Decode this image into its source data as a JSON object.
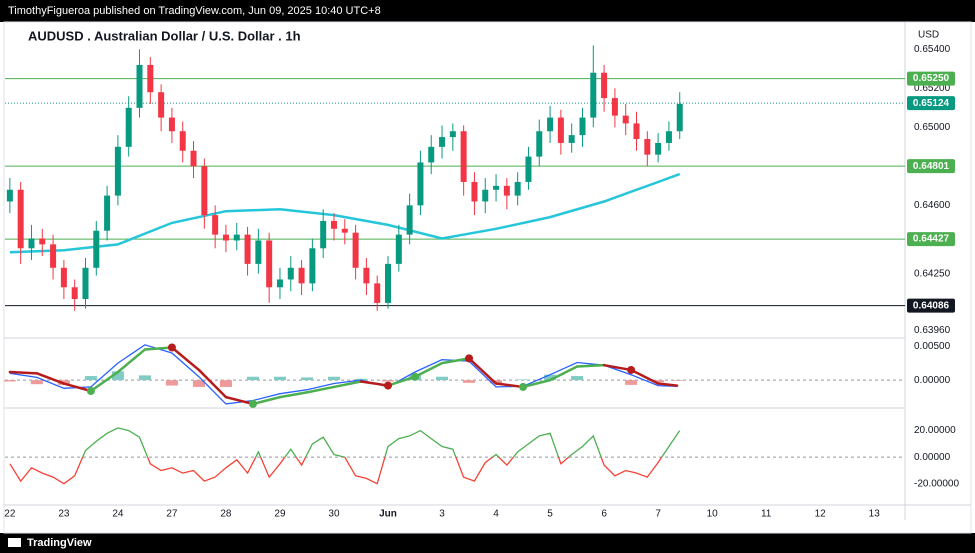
{
  "header": {
    "publisher": "TimothyFigueroa published on TradingView.com, Jun 09, 2025 10:40 UTC+8",
    "brand": "TradingView"
  },
  "chart_data": [
    {
      "type": "candlestick",
      "title": "AUDUSD . Australian Dollar / U.S. Dollar . 1h",
      "currency": "USD",
      "up_color": "#089981",
      "down_color": "#f23645",
      "xlim": [
        -0.09,
        16.57
      ],
      "xticks": [
        {
          "value": 0,
          "label": "22"
        },
        {
          "value": 1,
          "label": "23"
        },
        {
          "value": 2,
          "label": "24"
        },
        {
          "value": 3,
          "label": "27"
        },
        {
          "value": 4,
          "label": "28"
        },
        {
          "value": 5,
          "label": "29"
        },
        {
          "value": 6,
          "label": "30"
        },
        {
          "value": 7,
          "label": "Jun"
        },
        {
          "value": 8,
          "label": "3"
        },
        {
          "value": 9,
          "label": "4"
        },
        {
          "value": 10,
          "label": "5"
        },
        {
          "value": 11,
          "label": "6"
        },
        {
          "value": 12,
          "label": "7"
        },
        {
          "value": 13,
          "label": "10"
        },
        {
          "value": 14,
          "label": "11"
        },
        {
          "value": 15,
          "label": "12"
        },
        {
          "value": 16,
          "label": "13"
        }
      ],
      "ylim": [
        0.6392,
        0.6554
      ],
      "yticks": [
        {
          "value": 0.654,
          "label": "0.65400"
        },
        {
          "value": 0.652,
          "label": "0.65200"
        },
        {
          "value": 0.65,
          "label": "0.65000"
        },
        {
          "value": 0.646,
          "label": "0.64600"
        },
        {
          "value": 0.6425,
          "label": "0.64250"
        },
        {
          "value": 0.6396,
          "label": "0.63960"
        }
      ],
      "levels": [
        {
          "value": 0.6525,
          "label": "0.65250",
          "color": "#4caf50",
          "style": "solid"
        },
        {
          "value": 0.65124,
          "label": "0.65124",
          "color": "#089981",
          "style": "dotted"
        },
        {
          "value": 0.64801,
          "label": "0.64801",
          "color": "#4caf50",
          "style": "solid"
        },
        {
          "value": 0.64427,
          "label": "0.64427",
          "color": "#4caf50",
          "style": "solid"
        },
        {
          "value": 0.64086,
          "label": "0.64086",
          "color": "#131722",
          "style": "solid"
        }
      ],
      "x": [
        0,
        0.2,
        0.4,
        0.6,
        0.8,
        1,
        1.2,
        1.4,
        1.6,
        1.8,
        2,
        2.2,
        2.4,
        2.6,
        2.8,
        3,
        3.2,
        3.4,
        3.6,
        3.8,
        4,
        4.2,
        4.4,
        4.6,
        4.8,
        5,
        5.2,
        5.4,
        5.6,
        5.8,
        6,
        6.2,
        6.4,
        6.6,
        6.8,
        7,
        7.2,
        7.4,
        7.6,
        7.8,
        8,
        8.2,
        8.4,
        8.6,
        8.8,
        9,
        9.2,
        9.4,
        9.6,
        9.8,
        10,
        10.2,
        10.4,
        10.6,
        10.8,
        11,
        11.2,
        11.4,
        11.6,
        11.8,
        12,
        12.2,
        12.4
      ],
      "open": [
        0.6462,
        0.6468,
        0.6438,
        0.6443,
        0.644,
        0.6428,
        0.6418,
        0.6412,
        0.6428,
        0.6447,
        0.6465,
        0.649,
        0.651,
        0.6532,
        0.6518,
        0.6505,
        0.6498,
        0.6488,
        0.648,
        0.6455,
        0.6445,
        0.6442,
        0.6445,
        0.643,
        0.6442,
        0.6418,
        0.6422,
        0.6428,
        0.642,
        0.6438,
        0.6452,
        0.6448,
        0.6446,
        0.6428,
        0.642,
        0.641,
        0.643,
        0.6445,
        0.646,
        0.6482,
        0.649,
        0.6495,
        0.6498,
        0.6472,
        0.6462,
        0.6468,
        0.647,
        0.6465,
        0.6472,
        0.6485,
        0.6498,
        0.6505,
        0.6492,
        0.6496,
        0.6505,
        0.6528,
        0.6515,
        0.6506,
        0.6502,
        0.6494,
        0.6486,
        0.6492,
        0.6498
      ],
      "high": [
        0.6474,
        0.6472,
        0.645,
        0.6448,
        0.6445,
        0.6432,
        0.6422,
        0.6433,
        0.6452,
        0.647,
        0.6496,
        0.6516,
        0.654,
        0.6536,
        0.6522,
        0.651,
        0.6503,
        0.6493,
        0.6484,
        0.646,
        0.645,
        0.6451,
        0.6449,
        0.6448,
        0.6446,
        0.6428,
        0.6434,
        0.6432,
        0.6443,
        0.6458,
        0.6456,
        0.6453,
        0.645,
        0.6433,
        0.6424,
        0.6434,
        0.645,
        0.6466,
        0.6488,
        0.6496,
        0.6501,
        0.6502,
        0.6501,
        0.6477,
        0.6474,
        0.6476,
        0.6474,
        0.6477,
        0.649,
        0.6504,
        0.6511,
        0.6509,
        0.6502,
        0.651,
        0.6542,
        0.6532,
        0.652,
        0.6512,
        0.6508,
        0.6498,
        0.6497,
        0.6503,
        0.6518
      ],
      "low": [
        0.6456,
        0.643,
        0.6432,
        0.6434,
        0.6422,
        0.6412,
        0.6406,
        0.6407,
        0.6424,
        0.6442,
        0.646,
        0.6485,
        0.6505,
        0.6512,
        0.6498,
        0.6492,
        0.6482,
        0.6474,
        0.6448,
        0.6438,
        0.6436,
        0.6437,
        0.6424,
        0.6425,
        0.641,
        0.6412,
        0.6416,
        0.6414,
        0.6416,
        0.6433,
        0.6442,
        0.644,
        0.6422,
        0.6414,
        0.6406,
        0.6407,
        0.6426,
        0.644,
        0.6455,
        0.6476,
        0.6484,
        0.6488,
        0.6465,
        0.6455,
        0.6456,
        0.6462,
        0.6458,
        0.646,
        0.6468,
        0.648,
        0.6492,
        0.6486,
        0.6487,
        0.649,
        0.65,
        0.6508,
        0.65,
        0.6496,
        0.6488,
        0.648,
        0.6482,
        0.6488,
        0.6494
      ],
      "close": [
        0.6468,
        0.6438,
        0.6443,
        0.644,
        0.6428,
        0.6418,
        0.6412,
        0.6428,
        0.6447,
        0.6465,
        0.649,
        0.651,
        0.6532,
        0.6518,
        0.6505,
        0.6498,
        0.6488,
        0.648,
        0.6455,
        0.6445,
        0.6442,
        0.6445,
        0.643,
        0.6442,
        0.6418,
        0.6422,
        0.6428,
        0.642,
        0.6438,
        0.6452,
        0.6448,
        0.6446,
        0.6428,
        0.642,
        0.641,
        0.643,
        0.6445,
        0.646,
        0.6482,
        0.649,
        0.6495,
        0.6498,
        0.6472,
        0.6462,
        0.6468,
        0.647,
        0.6465,
        0.6472,
        0.6485,
        0.6498,
        0.6505,
        0.6492,
        0.6496,
        0.6505,
        0.6528,
        0.6515,
        0.6506,
        0.6502,
        0.6494,
        0.6486,
        0.6492,
        0.6498,
        0.6512
      ],
      "ema": {
        "color": "#26c6da",
        "x": [
          0,
          1,
          2,
          3,
          4,
          5,
          6,
          7,
          8,
          9,
          10,
          11,
          12,
          12.4
        ],
        "values": [
          0.6436,
          0.6437,
          0.644,
          0.6451,
          0.6457,
          0.6458,
          0.6455,
          0.645,
          0.6443,
          0.6448,
          0.6454,
          0.6462,
          0.6472,
          0.6476
        ]
      }
    },
    {
      "type": "macd",
      "ylim": [
        -0.0041,
        0.0062
      ],
      "yticks": [
        {
          "value": 0.005,
          "label": "0.00500"
        },
        {
          "value": 0,
          "label": "0.00000"
        }
      ],
      "x": [
        0,
        0.5,
        1,
        1.5,
        2,
        2.5,
        3,
        3.5,
        4,
        4.5,
        5,
        5.5,
        6,
        6.5,
        7,
        7.5,
        8,
        8.5,
        9,
        9.5,
        10,
        10.5,
        11,
        11.5,
        12,
        12.35
      ],
      "series": [
        {
          "color": "#2962ff",
          "values": [
            0.001,
            0.0004,
            -0.0012,
            -0.001,
            0.0025,
            0.0052,
            0.004,
            0.0005,
            -0.0035,
            -0.003,
            -0.002,
            -0.0014,
            -0.0005,
            0,
            -0.001,
            0.0012,
            0.003,
            0.0028,
            -0.001,
            -0.0009,
            0.0008,
            0.0026,
            0.0022,
            0.0008,
            -0.0008,
            -0.0009
          ]
        },
        {
          "up_color": "#4caf50",
          "down_color": "#b71c1c",
          "values": [
            0.0012,
            0.001,
            -0.0005,
            -0.0016,
            0.0012,
            0.0045,
            0.0048,
            0.0015,
            -0.0025,
            -0.0035,
            -0.0025,
            -0.0018,
            -0.001,
            -0.0002,
            -0.0008,
            0.0005,
            0.0025,
            0.0032,
            -0.0005,
            -0.001,
            0,
            0.002,
            0.0022,
            0.0015,
            -0.0005,
            -0.0008
          ]
        }
      ]
    },
    {
      "type": "oscillator",
      "up_color": "#4caf50",
      "down_color": "#f44336",
      "ylim": [
        -36,
        35.5
      ],
      "yticks": [
        {
          "value": 20,
          "label": "20.00000"
        },
        {
          "value": 0,
          "label": "0.00000"
        },
        {
          "value": -20,
          "label": "-20.00000"
        }
      ],
      "values": [
        -5,
        -18,
        -8,
        -12,
        -15,
        -20,
        -14,
        5,
        12,
        18,
        22,
        20,
        15,
        -5,
        -10,
        -8,
        -12,
        -10,
        -18,
        -15,
        -8,
        -2,
        -12,
        4,
        -15,
        -5,
        6,
        -6,
        10,
        15,
        2,
        0,
        -14,
        -16,
        -20,
        8,
        14,
        16,
        20,
        14,
        8,
        6,
        -15,
        -18,
        -4,
        2,
        -6,
        4,
        10,
        16,
        18,
        -5,
        2,
        8,
        16,
        -6,
        -14,
        -10,
        -12,
        -15,
        -4,
        8,
        20
      ]
    }
  ]
}
